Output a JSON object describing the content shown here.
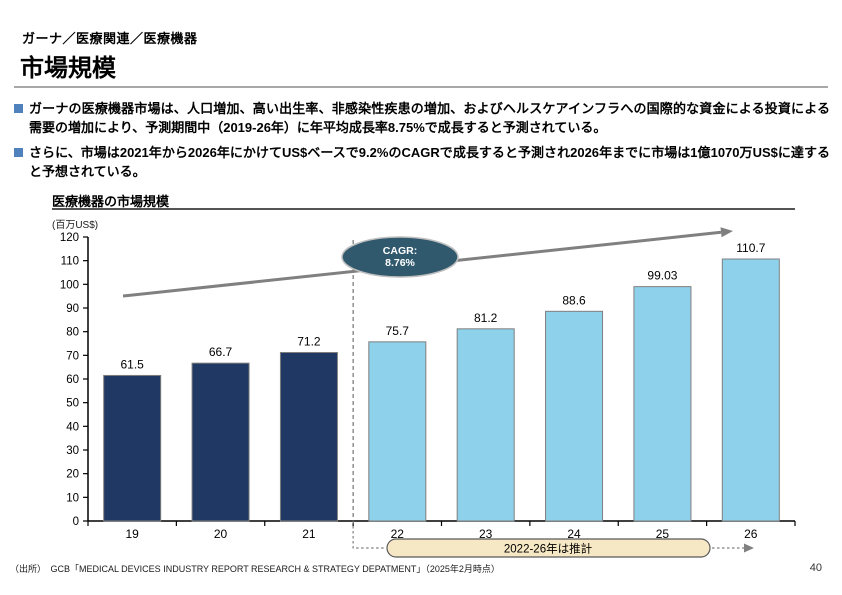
{
  "header": {
    "kicker": "ガーナ／医療関連／医療機器",
    "title": "市場規模"
  },
  "bullets": [
    {
      "text": "ガーナの医療機器市場は、人口増加、高い出生率、非感染性疾患の増加、およびヘルスケアインフラへの国際的な資金による投資による需要の増加により、予測期間中（2019-26年）に年平均成長率8.75%で成長すると予測されている。"
    },
    {
      "text": "さらに、市場は2021年から2026年にかけてUS$ベースで9.2%のCAGRで成長すると予測され2026年までに市場は1億1070万US$に達すると予想されている。"
    }
  ],
  "chart_data": {
    "type": "bar",
    "title": "医療機器の市場規模",
    "ylabel": "(百万US$)",
    "categories": [
      "19",
      "20",
      "21",
      "22",
      "23",
      "24",
      "25",
      "26"
    ],
    "values": [
      61.5,
      66.7,
      71.2,
      75.7,
      81.2,
      88.6,
      99.03,
      110.7
    ],
    "value_labels": [
      "61.5",
      "66.7",
      "71.2",
      "75.7",
      "81.2",
      "88.6",
      "99.03",
      "110.7"
    ],
    "ylim": [
      0,
      120
    ],
    "ytick_step": 10,
    "grid": false,
    "legend": "none",
    "forecast_start_index": 3,
    "annotation": {
      "line1": "CAGR:",
      "line2": "8.76%"
    },
    "forecast_note": "2022-26年は推計",
    "colors": {
      "actual_bar": "#1f3864",
      "forecast_bar": "#8ed1ea",
      "bar_border": "#7f7f7f",
      "arrow": "#808080",
      "ellipse_fill": "#31596e",
      "ellipse_border": "#bfbfbf",
      "ellipse_text": "#ffffff",
      "note_fill": "#f6e8c4",
      "note_border": "#595959",
      "axis": "#000000",
      "divider": "#595959"
    }
  },
  "footer": {
    "source": "（出所）　GCB「MEDICAL DEVICES INDUSTRY REPORT RESEARCH & STRATEGY DEPATMENT」（2025年2月時点）",
    "page_number": "40"
  }
}
